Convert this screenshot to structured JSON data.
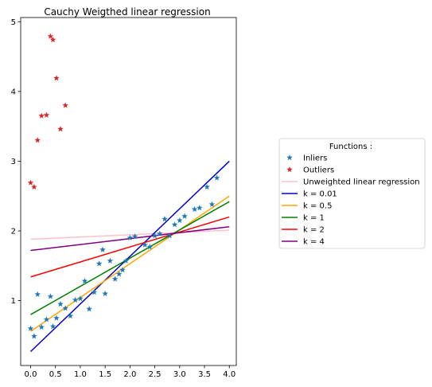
{
  "chart_data": {
    "type": "scatter",
    "title": "Cauchy Weigthed linear regression",
    "xlabel": "",
    "ylabel": "",
    "xlim": [
      -0.2,
      4.14
    ],
    "ylim": [
      0.07,
      5.06
    ],
    "xticks": [
      "0.0",
      "0.5",
      "1.0",
      "1.5",
      "2.0",
      "2.5",
      "3.0",
      "3.5",
      "4.0"
    ],
    "xtick_values": [
      0.0,
      0.5,
      1.0,
      1.5,
      2.0,
      2.5,
      3.0,
      3.5,
      4.0
    ],
    "yticks": [
      "1",
      "2",
      "3",
      "4",
      "5"
    ],
    "ytick_values": [
      1,
      2,
      3,
      4,
      5
    ],
    "grid": false,
    "legend": {
      "title": "Functions :",
      "placement": "outside-right"
    },
    "scatter_series": [
      {
        "name": "Inliers",
        "marker": "star",
        "color": "#1f77b4",
        "points": [
          [
            0.0,
            0.6
          ],
          [
            0.07,
            0.49
          ],
          [
            0.14,
            1.09
          ],
          [
            0.22,
            0.62
          ],
          [
            0.32,
            0.73
          ],
          [
            0.4,
            1.06
          ],
          [
            0.45,
            0.63
          ],
          [
            0.52,
            0.75
          ],
          [
            0.6,
            0.95
          ],
          [
            0.7,
            0.89
          ],
          [
            0.8,
            0.78
          ],
          [
            0.9,
            1.01
          ],
          [
            1.0,
            1.03
          ],
          [
            1.09,
            1.28
          ],
          [
            1.18,
            0.88
          ],
          [
            1.28,
            1.12
          ],
          [
            1.38,
            1.53
          ],
          [
            1.45,
            1.73
          ],
          [
            1.5,
            1.1
          ],
          [
            1.6,
            1.57
          ],
          [
            1.7,
            1.31
          ],
          [
            1.78,
            1.38
          ],
          [
            1.85,
            1.44
          ],
          [
            1.92,
            1.57
          ],
          [
            2.0,
            1.9
          ],
          [
            2.1,
            1.92
          ],
          [
            2.3,
            1.8
          ],
          [
            2.4,
            1.77
          ],
          [
            2.5,
            1.93
          ],
          [
            2.6,
            1.96
          ],
          [
            2.7,
            2.17
          ],
          [
            2.8,
            1.93
          ],
          [
            2.9,
            2.09
          ],
          [
            3.0,
            2.15
          ],
          [
            3.1,
            2.21
          ],
          [
            3.3,
            2.31
          ],
          [
            3.4,
            2.33
          ],
          [
            3.55,
            2.63
          ],
          [
            3.65,
            2.38
          ],
          [
            3.75,
            2.76
          ]
        ]
      },
      {
        "name": "Outliers",
        "marker": "star",
        "color": "#d62728",
        "points": [
          [
            0.0,
            2.69
          ],
          [
            0.07,
            2.63
          ],
          [
            0.14,
            3.3
          ],
          [
            0.22,
            3.65
          ],
          [
            0.32,
            3.66
          ],
          [
            0.4,
            4.79
          ],
          [
            0.45,
            4.74
          ],
          [
            0.52,
            4.19
          ],
          [
            0.6,
            3.46
          ],
          [
            0.7,
            3.8
          ]
        ]
      }
    ],
    "line_series": [
      {
        "name": "Unweighted linear regression",
        "color": "#ffc0cb",
        "x": [
          0.0,
          4.0
        ],
        "y": [
          1.88,
          2.01
        ]
      },
      {
        "name": "k = 0.01",
        "color": "#0000cd",
        "x": [
          0.0,
          4.0
        ],
        "y": [
          0.27,
          3.0
        ]
      },
      {
        "name": "k = 0.5",
        "color": "#ffa500",
        "x": [
          0.0,
          4.0
        ],
        "y": [
          0.56,
          2.5
        ]
      },
      {
        "name": "k = 1",
        "color": "#008000",
        "x": [
          0.0,
          4.0
        ],
        "y": [
          0.8,
          2.42
        ]
      },
      {
        "name": "k = 2",
        "color": "#ff0000",
        "x": [
          0.0,
          4.0
        ],
        "y": [
          1.34,
          2.2
        ]
      },
      {
        "name": "k = 4",
        "color": "#800080",
        "x": [
          0.0,
          4.0
        ],
        "y": [
          1.72,
          2.06
        ]
      }
    ]
  }
}
